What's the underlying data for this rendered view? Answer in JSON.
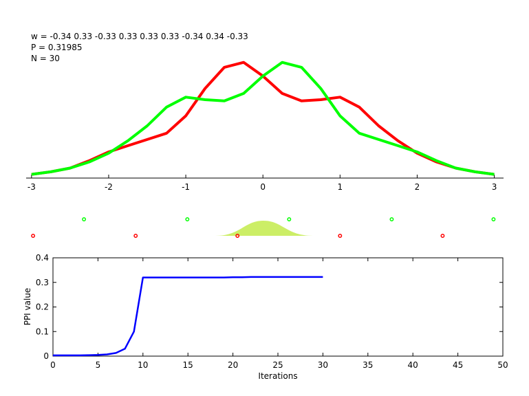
{
  "chart_data": [
    {
      "type": "line",
      "annotations": [
        "w = -0.34  0.33  -0.33  0.33  0.33  0.33  -0.34  0.34  -0.33",
        "P = 0.31985",
        "N = 30"
      ],
      "x": [
        -3,
        -2.75,
        -2.5,
        -2.25,
        -2,
        -1.75,
        -1.5,
        -1.25,
        -1,
        -0.75,
        -0.5,
        -0.25,
        0,
        0.25,
        0.5,
        0.75,
        1,
        1.25,
        1.5,
        1.75,
        2,
        2.25,
        2.5,
        2.75,
        3
      ],
      "series": [
        {
          "color": "#ff0000",
          "values": [
            0.03,
            0.05,
            0.08,
            0.14,
            0.21,
            0.26,
            0.31,
            0.36,
            0.5,
            0.72,
            0.89,
            0.93,
            0.82,
            0.68,
            0.62,
            0.63,
            0.65,
            0.57,
            0.42,
            0.3,
            0.2,
            0.13,
            0.08,
            0.05,
            0.03
          ]
        },
        {
          "color": "#00ff00",
          "values": [
            0.03,
            0.05,
            0.08,
            0.13,
            0.2,
            0.3,
            0.42,
            0.57,
            0.65,
            0.63,
            0.62,
            0.68,
            0.82,
            0.93,
            0.89,
            0.72,
            0.5,
            0.36,
            0.31,
            0.26,
            0.21,
            0.14,
            0.08,
            0.05,
            0.03
          ]
        }
      ],
      "xlim": [
        -3.07,
        3.12
      ],
      "ylim": [
        0,
        1
      ],
      "xticks": [
        -3,
        -2,
        -1,
        0,
        1,
        2,
        3
      ]
    },
    {
      "type": "scatter",
      "series": [
        {
          "color": "#00ff00",
          "x": [
            -2.32,
            -0.98,
            0.34,
            1.67,
            2.99
          ]
        },
        {
          "color": "#ff0000",
          "x": [
            -2.98,
            -1.65,
            -0.33,
            1.0,
            2.33
          ]
        }
      ],
      "xlim": [
        -3.07,
        3.12
      ]
    },
    {
      "type": "line",
      "xlabel": "Iterations",
      "ylabel": "PPI value",
      "x": [
        0,
        1,
        2,
        3,
        4,
        5,
        6,
        7,
        8,
        9,
        10,
        11,
        12,
        13,
        14,
        15,
        16,
        17,
        18,
        19,
        20,
        21,
        22,
        23,
        24,
        25,
        26,
        27,
        28,
        29,
        30
      ],
      "series": [
        {
          "color": "#0000ff",
          "values": [
            0.003,
            0.003,
            0.003,
            0.003,
            0.004,
            0.005,
            0.007,
            0.013,
            0.03,
            0.1,
            0.32,
            0.32,
            0.32,
            0.32,
            0.32,
            0.32,
            0.32,
            0.32,
            0.32,
            0.32,
            0.321,
            0.321,
            0.322,
            0.322,
            0.322,
            0.322,
            0.322,
            0.322,
            0.322,
            0.322,
            0.322
          ]
        }
      ],
      "xlim": [
        0,
        50
      ],
      "ylim": [
        0,
        0.4
      ],
      "xticks": [
        0,
        5,
        10,
        15,
        20,
        25,
        30,
        35,
        40,
        45,
        50
      ],
      "yticks": [
        0,
        0.1,
        0.2,
        0.3,
        0.4
      ]
    }
  ]
}
